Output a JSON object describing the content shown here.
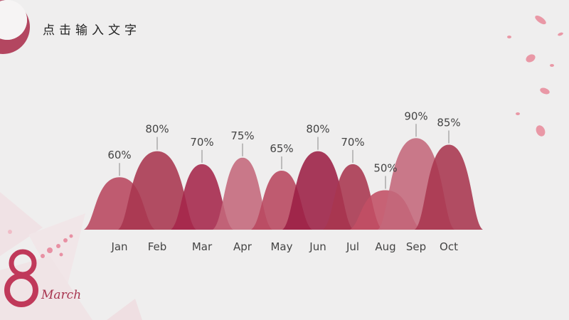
{
  "slide": {
    "title": "点击输入文字"
  },
  "colors": {
    "rose": "#a8354f",
    "rose_light": "#c4687b",
    "crimson": "#9c1f44",
    "background": "#efeeee",
    "petal": "#e88a9a"
  },
  "icons": {
    "corner": "crescent-ring-icon",
    "logo": "march-8-logo-icon",
    "petals": "rose-petal-icon"
  },
  "logo": {
    "numeral": "8",
    "word": "March"
  },
  "chart_data": {
    "type": "area",
    "categories": [
      "Jan",
      "Feb",
      "Mar",
      "Apr",
      "May",
      "Jun",
      "Jul",
      "Aug",
      "Sep",
      "Oct"
    ],
    "values": [
      60,
      80,
      70,
      75,
      65,
      80,
      70,
      50,
      90,
      85
    ],
    "value_labels": [
      "60%",
      "80%",
      "70%",
      "75%",
      "65%",
      "80%",
      "70%",
      "50%",
      "90%",
      "85%"
    ],
    "colors": [
      "#b8475f",
      "#a8354f",
      "#a5254a",
      "#c4687b",
      "#b8475f",
      "#9c1f44",
      "#a8354f",
      "#c14e64",
      "#c4687b",
      "#a8354f"
    ],
    "ylim": [
      0,
      100
    ],
    "grid": false,
    "legend": "none"
  }
}
